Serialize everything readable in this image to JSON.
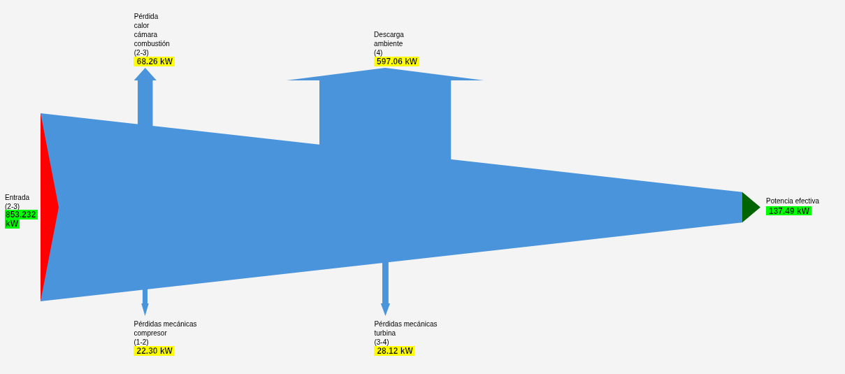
{
  "chart_data": {
    "type": "other",
    "categories": [
      "Entrada\n(2-3)",
      "Pérdida\ncalor\ncámara\ncombustión\n(2-3)",
      "Pérdidas mecánicas\ncompresor\n(1-2)",
      "Descarga\nambiente\n(4)",
      "Pérdidas mecánicas\nturbina\n(3-4)",
      "Potencia efectiva"
    ],
    "values": [
      853.232,
      68.26,
      22.3,
      597.06,
      28.12,
      137.49
    ],
    "value_labels": [
      "853.232 kW",
      "68.26 kW",
      "22.30 kW",
      "597.06 kW",
      "28.12 kW",
      "137.49 kW"
    ],
    "colors": [
      "#ff0000",
      "#4a94dc",
      "#4a94dc",
      "#4a94dc",
      "#4a94dc",
      "#006400"
    ]
  }
}
